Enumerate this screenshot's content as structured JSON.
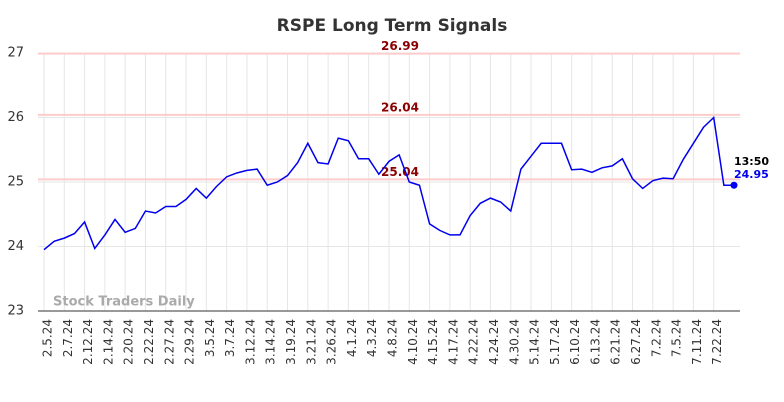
{
  "chart_data": {
    "type": "line",
    "title": "RSPE Long Term Signals",
    "categories": [
      "2.5.24",
      null,
      "2.7.24",
      null,
      "2.12.24",
      null,
      "2.14.24",
      null,
      "2.20.24",
      null,
      "2.22.24",
      null,
      "2.27.24",
      null,
      "2.29.24",
      null,
      "3.5.24",
      null,
      "3.7.24",
      null,
      "3.12.24",
      null,
      "3.14.24",
      null,
      "3.19.24",
      null,
      "3.21.24",
      null,
      "3.26.24",
      null,
      "4.1.24",
      null,
      "4.3.24",
      null,
      "4.8.24",
      null,
      "4.10.24",
      null,
      "4.15.24",
      null,
      "4.17.24",
      null,
      "4.22.24",
      null,
      "4.24.24",
      null,
      "4.30.24",
      null,
      "5.14.24",
      null,
      "5.17.24",
      null,
      "6.10.24",
      null,
      "6.13.24",
      null,
      "6.21.24",
      null,
      "6.27.24",
      null,
      "7.2.24",
      null,
      "7.5.24",
      null,
      "7.11.24",
      null,
      "7.22.24",
      null,
      null
    ],
    "series": [
      {
        "name": "RSPE",
        "color": "#0000ee",
        "values": [
          23.95,
          24.08,
          24.13,
          24.2,
          24.38,
          23.97,
          24.18,
          24.42,
          24.22,
          24.28,
          24.55,
          24.52,
          24.62,
          24.62,
          24.73,
          24.9,
          24.75,
          24.93,
          25.08,
          25.14,
          25.18,
          25.2,
          24.95,
          25.0,
          25.1,
          25.3,
          25.6,
          25.3,
          25.28,
          25.68,
          25.64,
          25.36,
          25.36,
          25.12,
          25.32,
          25.42,
          25.0,
          24.95,
          24.35,
          24.25,
          24.18,
          24.18,
          24.48,
          24.67,
          24.75,
          24.69,
          24.55,
          25.2,
          25.4,
          25.6,
          25.6,
          25.6,
          25.19,
          25.2,
          25.15,
          25.22,
          25.25,
          25.36,
          25.05,
          24.9,
          25.02,
          25.06,
          25.05,
          25.35,
          25.6,
          25.85,
          26.0,
          24.95,
          24.95
        ]
      }
    ],
    "signal_lines": [
      {
        "value": 26.99,
        "label": "26.99"
      },
      {
        "value": 26.04,
        "label": "26.04"
      },
      {
        "value": 25.04,
        "label": "25.04"
      }
    ],
    "last_point": {
      "time": "13:50",
      "value": 24.95,
      "label": "24.95"
    },
    "watermark": "Stock Traders Daily",
    "ylim": [
      23,
      27
    ],
    "yticks": [
      23,
      24,
      25,
      26,
      27
    ],
    "grid": true
  }
}
